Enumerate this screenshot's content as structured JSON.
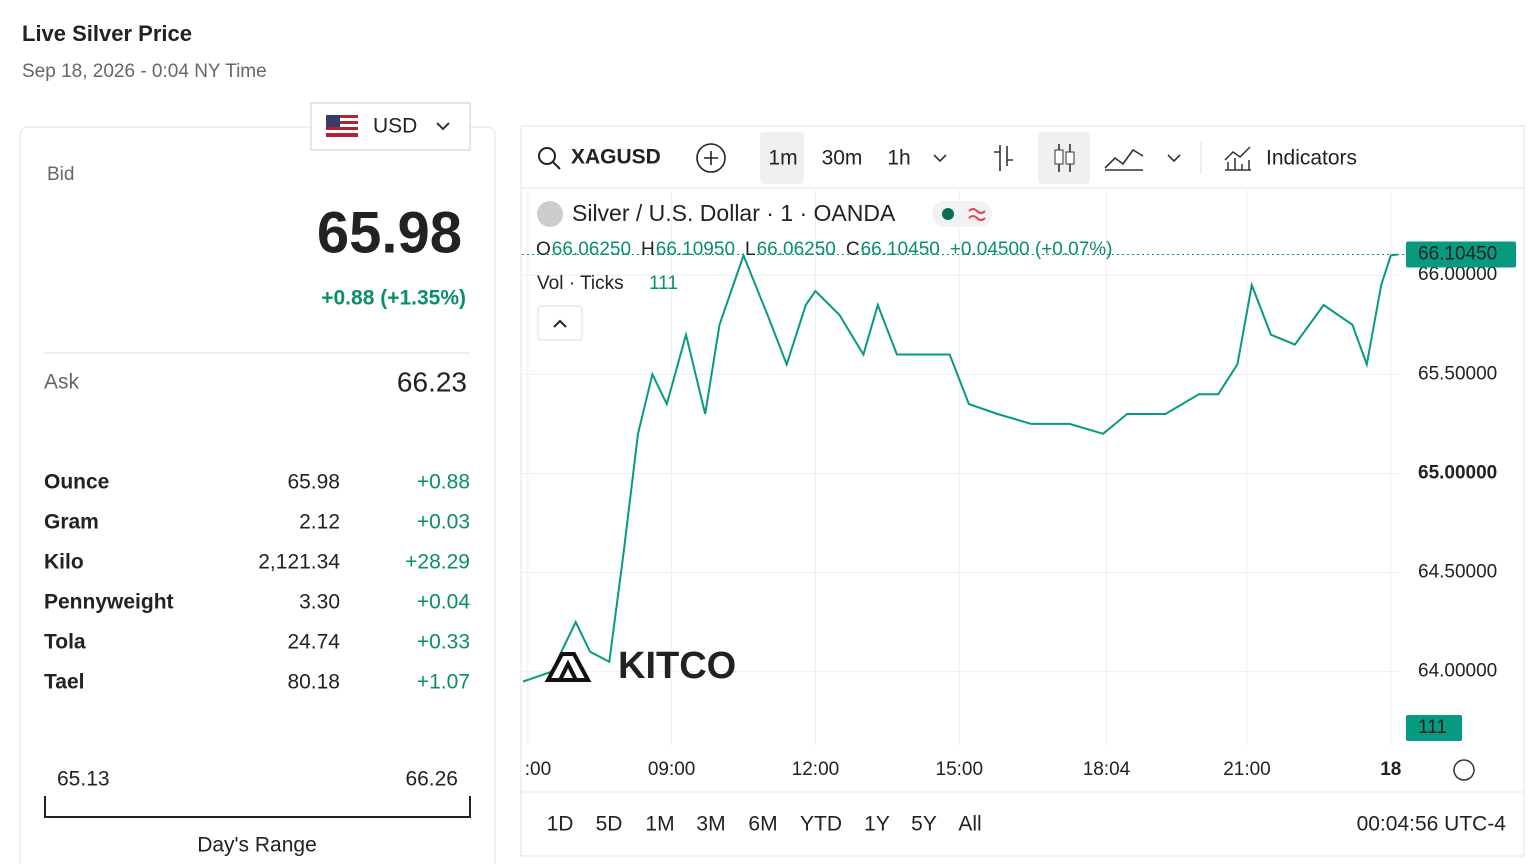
{
  "header": {
    "title": "Live Silver Price",
    "subtitle": "Sep 18, 2026 - 0:04 NY Time"
  },
  "currency": "USD",
  "quote": {
    "bid_label": "Bid",
    "bid": "65.98",
    "change": "+0.88 (+1.35%)",
    "ask_label": "Ask",
    "ask": "66.23"
  },
  "units_table": {
    "rows": [
      [
        "Ounce",
        "65.98",
        "+0.88"
      ],
      [
        "Gram",
        "2.12",
        "+0.03"
      ],
      [
        "Kilo",
        "2,121.34",
        "+28.29"
      ],
      [
        "Pennyweight",
        "3.30",
        "+0.04"
      ],
      [
        "Tola",
        "24.74",
        "+0.33"
      ],
      [
        "Tael",
        "80.18",
        "+1.07"
      ]
    ]
  },
  "day_range": {
    "low": "65.13",
    "high": "66.26",
    "label": "Day's Range"
  },
  "toolbar": {
    "symbol": "XAGUSD",
    "intervals": [
      "1m",
      "30m",
      "1h"
    ],
    "indicators": "Indicators"
  },
  "chart_data": {
    "type": "line",
    "title": "Silver / U.S. Dollar · 1 · OANDA",
    "ohlc": [
      {
        "key": "O",
        "value": "66.06250"
      },
      {
        "key": "H",
        "value": "66.10950"
      },
      {
        "key": "L",
        "value": "66.06250"
      },
      {
        "key": "C",
        "value": "66.10450"
      }
    ],
    "ohlc_change": "+0.04500 (+0.07%)",
    "volume_label": "Vol · Ticks",
    "last_volume": 111,
    "watermark": "KITCO",
    "color": "#089981",
    "x": [
      5.9,
      6.5,
      7.0,
      7.3,
      7.7,
      8.0,
      8.3,
      8.6,
      8.9,
      9.3,
      9.7,
      10.0,
      10.5,
      11.0,
      11.4,
      11.8,
      12.0,
      12.5,
      13.0,
      13.3,
      13.7,
      14.3,
      14.8,
      15.2,
      15.8,
      16.5,
      17.3,
      18.0,
      18.5,
      19.3,
      20.0,
      20.4,
      20.8,
      21.1,
      21.5,
      22.0,
      22.6,
      23.2,
      23.5,
      23.8,
      24.0,
      24.15
    ],
    "values": [
      63.95,
      64.0,
      64.25,
      64.1,
      64.05,
      64.6,
      65.2,
      65.5,
      65.35,
      65.7,
      65.3,
      65.75,
      66.1,
      65.8,
      65.55,
      65.85,
      65.92,
      65.8,
      65.6,
      65.85,
      65.6,
      65.6,
      65.6,
      65.35,
      65.3,
      65.25,
      65.25,
      65.2,
      65.3,
      65.3,
      65.4,
      65.4,
      65.55,
      65.95,
      65.7,
      65.65,
      65.85,
      65.75,
      65.55,
      65.95,
      66.1,
      66.1045
    ],
    "xlim": [
      5.88,
      24.15
    ],
    "ylim": [
      63.63,
      66.43
    ],
    "xticks": [
      {
        "value": 6,
        "label": ":00"
      },
      {
        "value": 9,
        "label": "09:00"
      },
      {
        "value": 12,
        "label": "12:00"
      },
      {
        "value": 15,
        "label": "15:00"
      },
      {
        "value": 18.07,
        "label": "18:04"
      },
      {
        "value": 21,
        "label": "21:00"
      },
      {
        "value": 24,
        "label": "18"
      }
    ],
    "yticks": [
      {
        "value": 64,
        "label": "64.00000"
      },
      {
        "value": 64.5,
        "label": "64.50000"
      },
      {
        "value": 65,
        "label": "65.00000"
      },
      {
        "value": 65.5,
        "label": "65.50000"
      },
      {
        "value": 66,
        "label": "66.00000"
      }
    ],
    "last_price": {
      "value": 66.1045,
      "label": "66.10450"
    },
    "grid": true
  },
  "ranges": [
    "1D",
    "5D",
    "1M",
    "3M",
    "6M",
    "YTD",
    "1Y",
    "5Y",
    "All"
  ],
  "clock": "00:04:56 UTC-4"
}
